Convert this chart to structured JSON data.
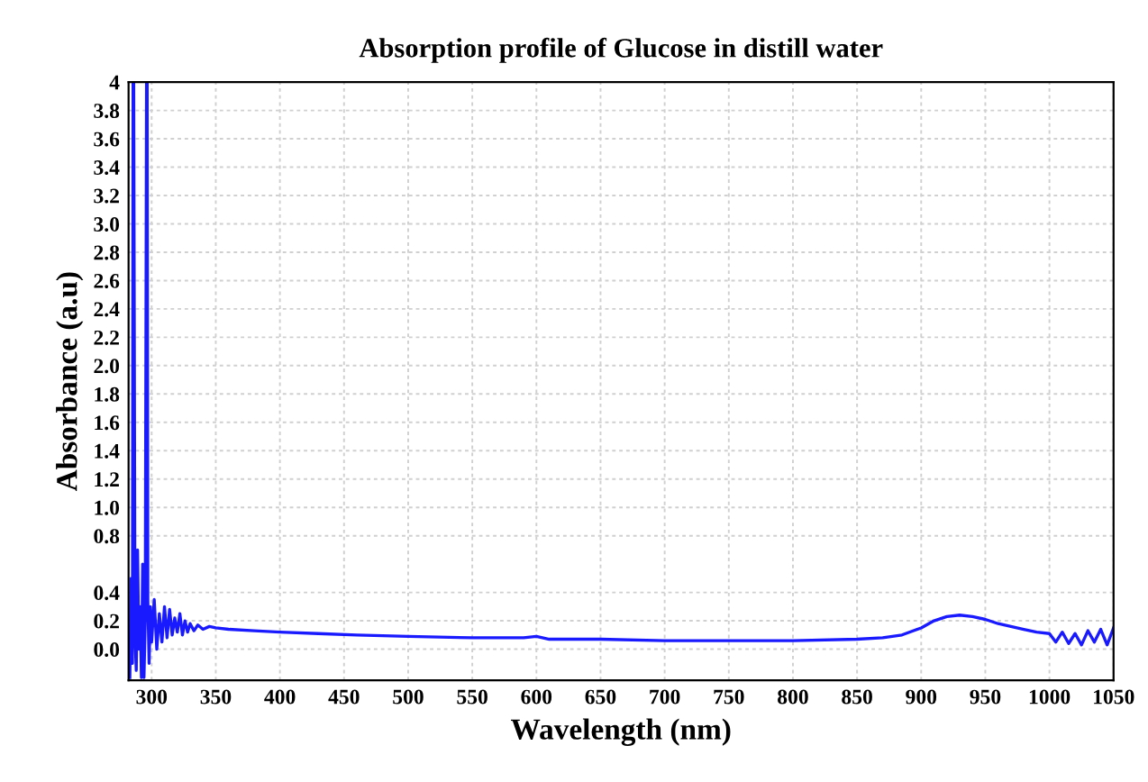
{
  "chart_data": {
    "type": "line",
    "title": "Absorption profile of Glucose in distill water",
    "xlabel": "Wavelength (nm)",
    "ylabel": "Absorbance (a.u)",
    "xlim": [
      282,
      1050
    ],
    "ylim": [
      -0.22,
      4
    ],
    "xticks": [
      300,
      350,
      400,
      450,
      500,
      550,
      600,
      650,
      700,
      750,
      800,
      850,
      900,
      950,
      1000,
      1050
    ],
    "yticks": [
      {
        "value": 0,
        "label": "0.0"
      },
      0.2,
      0.4,
      0.8,
      {
        "value": 1,
        "label": "1.0"
      },
      1.2,
      1.4,
      1.6,
      1.8,
      {
        "value": 2,
        "label": "2.0"
      },
      2.2,
      2.4,
      2.6,
      2.8,
      {
        "value": 3,
        "label": "3.0"
      },
      3.2,
      3.4,
      3.6,
      3.8,
      4
    ],
    "grid": true,
    "marker": "none",
    "line_style": "solid",
    "series": [
      {
        "color": "#1a1aff",
        "x": [
          283,
          284,
          285,
          285.5,
          286,
          287,
          288,
          289,
          290,
          291,
          292,
          293,
          294,
          295,
          296,
          296.5,
          297,
          298,
          299,
          300,
          302,
          304,
          306,
          308,
          310,
          312,
          314,
          316,
          318,
          320,
          322,
          324,
          326,
          328,
          330,
          333,
          336,
          340,
          345,
          350,
          360,
          380,
          400,
          430,
          460,
          500,
          550,
          590,
          600,
          610,
          650,
          700,
          750,
          800,
          850,
          870,
          885,
          900,
          910,
          920,
          930,
          940,
          950,
          960,
          970,
          980,
          990,
          1000,
          1005,
          1010,
          1015,
          1020,
          1025,
          1030,
          1035,
          1040,
          1045,
          1050
        ],
        "values": [
          -0.2,
          0.5,
          -0.1,
          4,
          4,
          0.1,
          -0.15,
          0.7,
          0.0,
          0.3,
          -0.2,
          0.6,
          -0.2,
          0.2,
          4,
          4,
          0.35,
          -0.1,
          0.3,
          0.05,
          0.35,
          0.0,
          0.25,
          0.05,
          0.3,
          0.08,
          0.28,
          0.1,
          0.22,
          0.12,
          0.25,
          0.1,
          0.2,
          0.12,
          0.18,
          0.13,
          0.17,
          0.14,
          0.16,
          0.15,
          0.14,
          0.13,
          0.12,
          0.11,
          0.1,
          0.09,
          0.08,
          0.08,
          0.09,
          0.07,
          0.07,
          0.06,
          0.06,
          0.06,
          0.07,
          0.08,
          0.1,
          0.15,
          0.2,
          0.23,
          0.24,
          0.23,
          0.21,
          0.18,
          0.16,
          0.14,
          0.12,
          0.11,
          0.05,
          0.12,
          0.04,
          0.11,
          0.03,
          0.13,
          0.05,
          0.14,
          0.03,
          0.15
        ]
      }
    ]
  }
}
